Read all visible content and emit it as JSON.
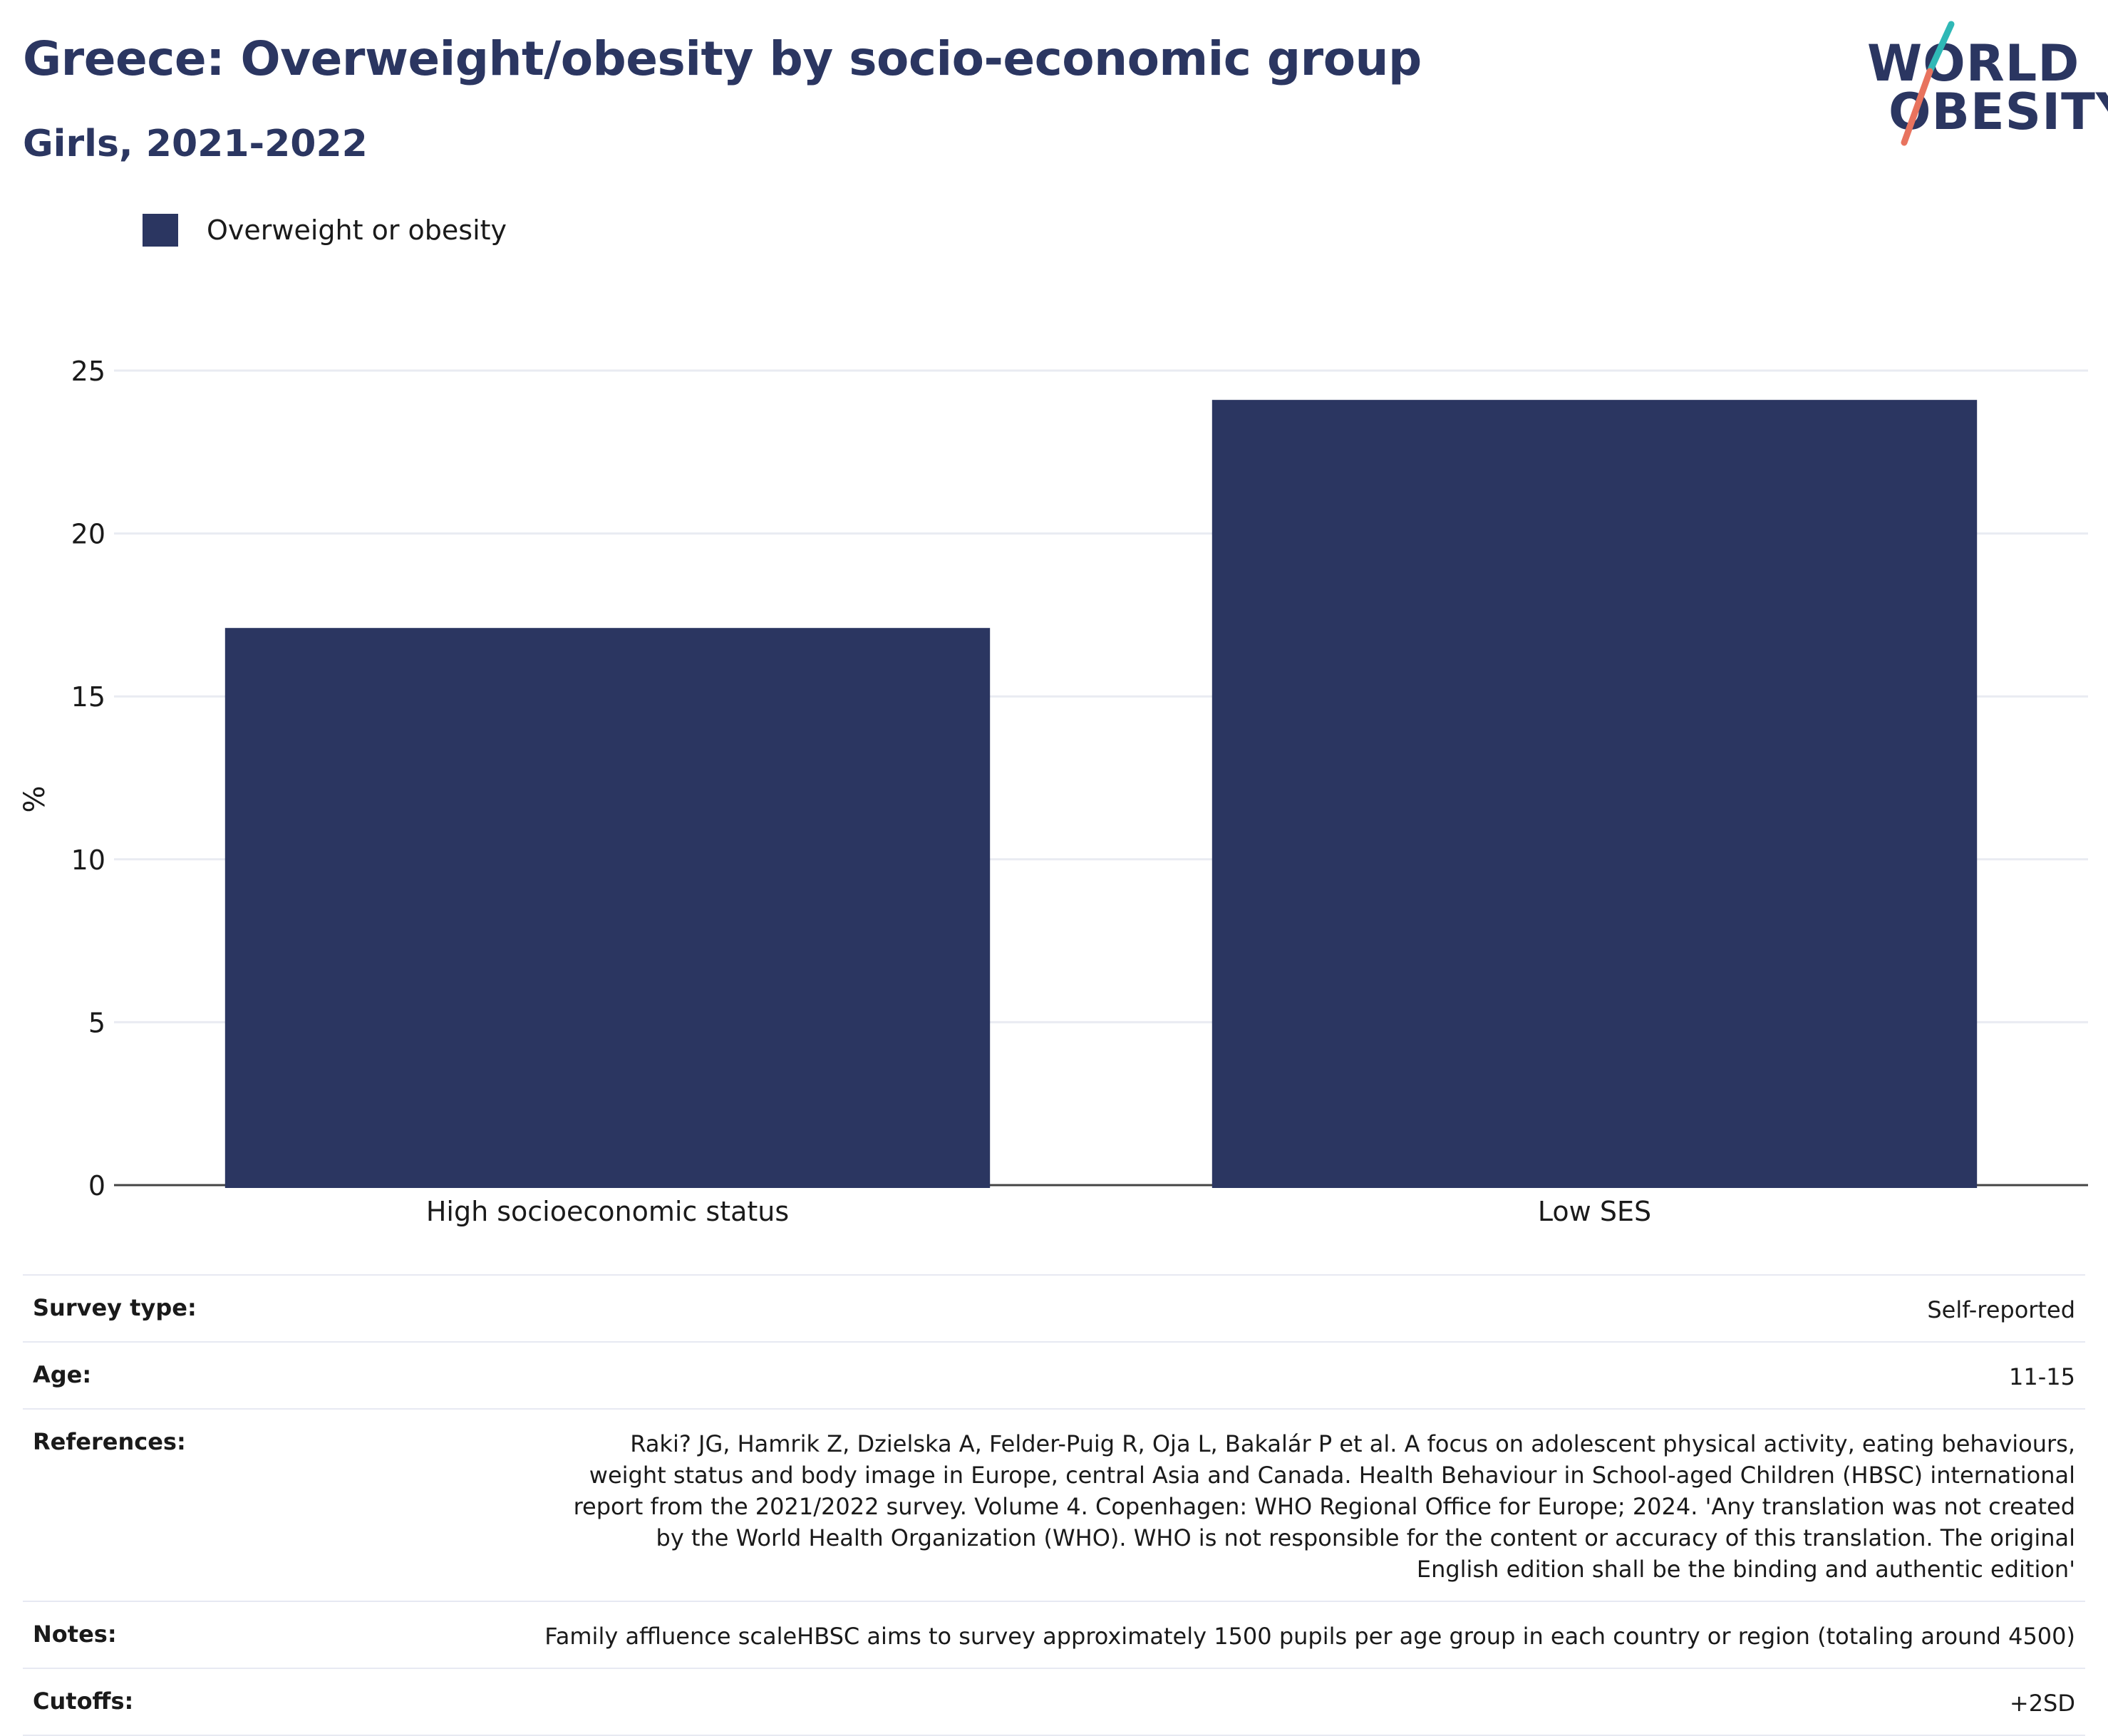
{
  "header": {
    "title": "Greece: Overweight/obesity by socio-economic group",
    "subtitle": "Girls, 2021-2022"
  },
  "logo": {
    "line1": "WORLD",
    "line2": "OBESITY",
    "accent_teal": "#2fb8b6",
    "accent_coral": "#e8735e"
  },
  "legend": {
    "label": "Overweight or obesity",
    "color": "#2b3661"
  },
  "chart_data": {
    "type": "bar",
    "categories": [
      "High socioeconomic status",
      "Low SES"
    ],
    "series": [
      {
        "name": "Overweight or obesity",
        "values": [
          17.1,
          24.1
        ],
        "color": "#2b3661"
      }
    ],
    "ylabel": "%",
    "ylim": [
      0,
      25
    ],
    "yticks": [
      0,
      5,
      10,
      15,
      20,
      25
    ],
    "grid": true,
    "legend_position": "top-left"
  },
  "meta": {
    "survey_type": {
      "label": "Survey type:",
      "value": "Self-reported"
    },
    "age": {
      "label": "Age:",
      "value": "11-15"
    },
    "references": {
      "label": "References:",
      "value": "Raki? JG, Hamrik Z, Dzielska A, Felder-Puig R, Oja L, Bakalár P et al. A focus on adolescent physical activity, eating behaviours, weight status and body image in Europe, central Asia and Canada. Health Behaviour in School-aged Children (HBSC) international report from the 2021/2022 survey. Volume 4. Copenhagen: WHO Regional Office for Europe; 2024. 'Any translation was not created by the World Health Organization (WHO). WHO is not responsible for the content or accuracy of this translation. The original English edition shall be the binding and authentic edition'"
    },
    "notes": {
      "label": "Notes:",
      "value": "Family affluence scaleHBSC aims to survey approximately 1500 pupils per age group in each country or region (totaling around 4500)"
    },
    "cutoffs": {
      "label": "Cutoffs:",
      "value": "+2SD"
    }
  }
}
